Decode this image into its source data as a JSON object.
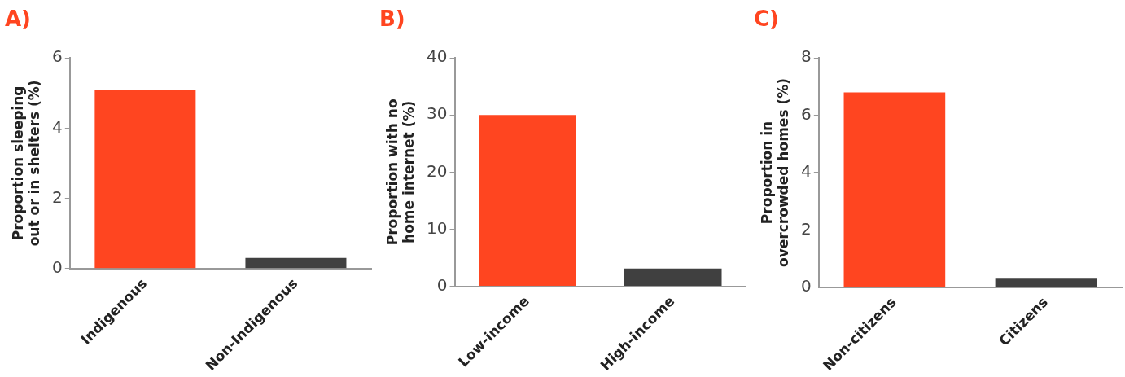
{
  "chart_data": [
    {
      "type": "bar",
      "title": "A)",
      "ylabel": "Proportion sleeping out or in shelters (%)",
      "categories": [
        "Indigenous",
        "Non-Indigenous"
      ],
      "values": [
        5.1,
        0.3
      ],
      "colors": [
        "#ff4520",
        "#404040"
      ],
      "ylim": [
        0,
        6
      ],
      "yticks": [
        0,
        2,
        4,
        6
      ]
    },
    {
      "type": "bar",
      "title": "B)",
      "ylabel": "Proportion with no home internet (%)",
      "categories": [
        "Low-income",
        "High-income"
      ],
      "values": [
        30,
        3.1
      ],
      "colors": [
        "#ff4520",
        "#404040"
      ],
      "ylim": [
        0,
        40
      ],
      "yticks": [
        0,
        10,
        20,
        30,
        40
      ]
    },
    {
      "type": "bar",
      "title": "C)",
      "ylabel": "Proportion in overcrowded homes (%)",
      "categories": [
        "Non-citizens",
        "Citizens"
      ],
      "values": [
        6.8,
        0.3
      ],
      "colors": [
        "#ff4520",
        "#404040"
      ],
      "ylim": [
        0,
        8
      ],
      "yticks": [
        0,
        2,
        4,
        6,
        8
      ]
    }
  ]
}
